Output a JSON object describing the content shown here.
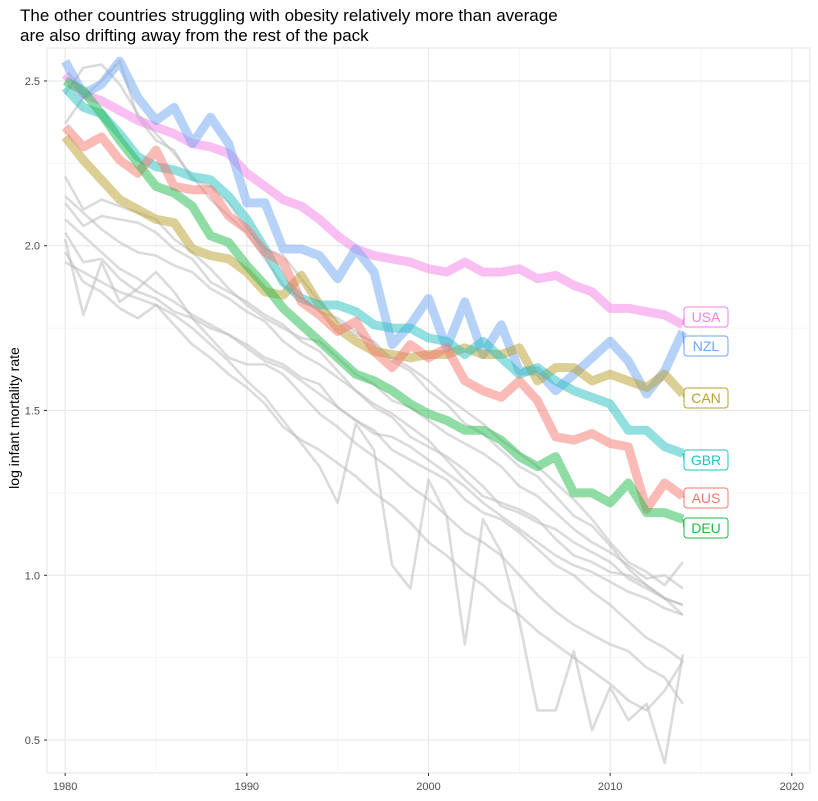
{
  "chart_data": {
    "type": "line",
    "title": "The other countries struggling with obesity relatively more than average\nare also drifting away from the rest of the pack",
    "xlabel": "",
    "ylabel": "log infant mortality rate",
    "xlim": [
      1979,
      2021
    ],
    "ylim": [
      0.4,
      2.6
    ],
    "x_ticks": [
      1980,
      1990,
      2000,
      2010,
      2020
    ],
    "y_ticks": [
      0.5,
      1.0,
      1.5,
      2.0,
      2.5
    ],
    "grid": true,
    "highlighted_series": [
      {
        "name": "USA",
        "color": "#f47fe6",
        "x": [
          1980,
          1981,
          1982,
          1983,
          1984,
          1985,
          1986,
          1987,
          1988,
          1989,
          1990,
          1991,
          1992,
          1993,
          1994,
          1995,
          1996,
          1997,
          1998,
          1999,
          2000,
          2001,
          2002,
          2003,
          2004,
          2005,
          2006,
          2007,
          2008,
          2009,
          2010,
          2011,
          2012,
          2013,
          2014
        ],
        "values": [
          2.52,
          2.46,
          2.44,
          2.41,
          2.38,
          2.36,
          2.34,
          2.31,
          2.3,
          2.28,
          2.22,
          2.18,
          2.14,
          2.12,
          2.08,
          2.03,
          1.99,
          1.97,
          1.96,
          1.95,
          1.93,
          1.92,
          1.95,
          1.92,
          1.92,
          1.93,
          1.9,
          1.91,
          1.88,
          1.86,
          1.81,
          1.81,
          1.8,
          1.79,
          1.76
        ]
      },
      {
        "name": "NZL",
        "color": "#6fa5f4",
        "x": [
          1980,
          1981,
          1982,
          1983,
          1984,
          1985,
          1986,
          1987,
          1988,
          1989,
          1990,
          1991,
          1992,
          1993,
          1994,
          1995,
          1996,
          1997,
          1998,
          1999,
          2000,
          2001,
          2002,
          2003,
          2004,
          2005,
          2006,
          2007,
          2008,
          2009,
          2010,
          2011,
          2012,
          2013,
          2014
        ],
        "values": [
          2.56,
          2.46,
          2.49,
          2.56,
          2.45,
          2.38,
          2.42,
          2.31,
          2.39,
          2.31,
          2.13,
          2.13,
          1.99,
          1.99,
          1.97,
          1.9,
          1.99,
          1.92,
          1.7,
          1.76,
          1.84,
          1.69,
          1.83,
          1.67,
          1.76,
          1.62,
          1.62,
          1.56,
          1.61,
          1.66,
          1.71,
          1.65,
          1.55,
          1.62,
          1.74
        ]
      },
      {
        "name": "CAN",
        "color": "#b99f2c",
        "x": [
          1980,
          1981,
          1982,
          1983,
          1984,
          1985,
          1986,
          1987,
          1988,
          1989,
          1990,
          1991,
          1992,
          1993,
          1994,
          1995,
          1996,
          1997,
          1998,
          1999,
          2000,
          2001,
          2002,
          2003,
          2004,
          2005,
          2006,
          2007,
          2008,
          2009,
          2010,
          2011,
          2012,
          2013,
          2014
        ],
        "values": [
          2.33,
          2.26,
          2.2,
          2.14,
          2.11,
          2.08,
          2.07,
          1.99,
          1.97,
          1.96,
          1.92,
          1.86,
          1.85,
          1.91,
          1.82,
          1.75,
          1.71,
          1.68,
          1.67,
          1.66,
          1.67,
          1.67,
          1.69,
          1.67,
          1.67,
          1.69,
          1.59,
          1.63,
          1.63,
          1.59,
          1.61,
          1.59,
          1.57,
          1.61,
          1.55
        ]
      },
      {
        "name": "GBR",
        "color": "#26c0c0",
        "x": [
          1980,
          1981,
          1982,
          1983,
          1984,
          1985,
          1986,
          1987,
          1988,
          1989,
          1990,
          1991,
          1992,
          1993,
          1994,
          1995,
          1996,
          1997,
          1998,
          1999,
          2000,
          2001,
          2002,
          2003,
          2004,
          2005,
          2006,
          2007,
          2008,
          2009,
          2010,
          2011,
          2012,
          2013,
          2014
        ],
        "values": [
          2.48,
          2.42,
          2.4,
          2.34,
          2.27,
          2.24,
          2.23,
          2.21,
          2.2,
          2.15,
          2.08,
          1.99,
          1.89,
          1.84,
          1.82,
          1.82,
          1.8,
          1.76,
          1.75,
          1.75,
          1.72,
          1.71,
          1.67,
          1.71,
          1.66,
          1.61,
          1.63,
          1.59,
          1.56,
          1.54,
          1.52,
          1.44,
          1.44,
          1.39,
          1.37
        ]
      },
      {
        "name": "AUS",
        "color": "#f5766d",
        "x": [
          1980,
          1981,
          1982,
          1983,
          1984,
          1985,
          1986,
          1987,
          1988,
          1989,
          1990,
          1991,
          1992,
          1993,
          1994,
          1995,
          1996,
          1997,
          1998,
          1999,
          2000,
          2001,
          2002,
          2003,
          2004,
          2005,
          2006,
          2007,
          2008,
          2009,
          2010,
          2011,
          2012,
          2013,
          2014
        ],
        "values": [
          2.36,
          2.3,
          2.33,
          2.26,
          2.22,
          2.29,
          2.18,
          2.17,
          2.17,
          2.09,
          2.05,
          1.98,
          1.95,
          1.83,
          1.79,
          1.74,
          1.77,
          1.68,
          1.63,
          1.7,
          1.66,
          1.69,
          1.59,
          1.56,
          1.54,
          1.59,
          1.53,
          1.42,
          1.41,
          1.43,
          1.4,
          1.39,
          1.2,
          1.28,
          1.24
        ]
      },
      {
        "name": "DEU",
        "color": "#22b94c",
        "x": [
          1980,
          1981,
          1982,
          1983,
          1984,
          1985,
          1986,
          1987,
          1988,
          1989,
          1990,
          1991,
          1992,
          1993,
          1994,
          1995,
          1996,
          1997,
          1998,
          1999,
          2000,
          2001,
          2002,
          2003,
          2004,
          2005,
          2006,
          2007,
          2008,
          2009,
          2010,
          2011,
          2012,
          2013,
          2014
        ],
        "values": [
          2.5,
          2.47,
          2.4,
          2.32,
          2.25,
          2.18,
          2.16,
          2.12,
          2.03,
          2.01,
          1.94,
          1.88,
          1.81,
          1.76,
          1.71,
          1.66,
          1.61,
          1.59,
          1.56,
          1.52,
          1.49,
          1.47,
          1.44,
          1.44,
          1.41,
          1.36,
          1.33,
          1.36,
          1.25,
          1.25,
          1.22,
          1.28,
          1.19,
          1.19,
          1.17
        ]
      }
    ],
    "background_series": [
      {
        "name": "",
        "values": [
          2.46,
          2.54,
          2.55,
          2.49,
          2.4,
          2.34,
          2.28,
          2.21,
          2.14,
          2.09,
          2.04,
          1.96,
          1.88,
          1.84,
          1.8,
          1.78,
          1.74,
          1.7,
          1.66,
          1.63,
          1.59,
          1.54,
          1.5,
          1.46,
          1.41,
          1.37,
          1.33,
          1.28,
          1.23,
          1.17,
          1.1,
          1.04,
          1.01,
          0.97,
          1.04
        ]
      },
      {
        "name": "",
        "values": [
          2.37,
          2.45,
          2.5,
          2.56,
          2.39,
          2.32,
          2.29,
          2.2,
          2.18,
          2.13,
          2.05,
          1.99,
          1.97,
          1.9,
          1.83,
          1.77,
          1.73,
          1.71,
          1.65,
          1.62,
          1.56,
          1.52,
          1.46,
          1.43,
          1.38,
          1.33,
          1.3,
          1.24,
          1.18,
          1.15,
          1.09,
          1.02,
          0.97,
          0.93,
          0.88
        ]
      },
      {
        "name": "",
        "values": [
          2.21,
          2.11,
          2.14,
          2.12,
          2.1,
          2.08,
          2.02,
          1.98,
          1.93,
          1.87,
          1.82,
          1.78,
          1.75,
          1.72,
          1.71,
          1.66,
          1.61,
          1.58,
          1.53,
          1.51,
          1.47,
          1.43,
          1.4,
          1.37,
          1.33,
          1.27,
          1.24,
          1.19,
          1.14,
          1.1,
          1.07,
          1.03,
          0.99,
          1.0,
          0.96
        ]
      },
      {
        "name": "",
        "values": [
          2.13,
          2.06,
          2.09,
          2.08,
          2.07,
          2.04,
          1.99,
          1.96,
          1.89,
          1.86,
          1.83,
          1.79,
          1.76,
          1.71,
          1.68,
          1.62,
          1.56,
          1.52,
          1.49,
          1.45,
          1.41,
          1.35,
          1.29,
          1.24,
          1.22,
          1.2,
          1.17,
          1.11,
          1.06,
          1.04,
          1.01,
          1.0,
          0.97,
          0.93,
          0.91
        ]
      },
      {
        "name": "",
        "values": [
          2.15,
          2.1,
          2.05,
          2.01,
          1.98,
          1.97,
          1.94,
          1.92,
          1.87,
          1.84,
          1.8,
          1.77,
          1.71,
          1.67,
          1.64,
          1.6,
          1.56,
          1.51,
          1.48,
          1.42,
          1.39,
          1.36,
          1.32,
          1.27,
          1.21,
          1.19,
          1.16,
          1.14,
          1.1,
          1.07,
          1.04,
          0.99,
          0.96,
          0.93,
          0.91
        ]
      },
      {
        "name": "",
        "values": [
          2.08,
          2.03,
          1.98,
          1.93,
          1.9,
          1.86,
          1.83,
          1.79,
          1.76,
          1.73,
          1.69,
          1.65,
          1.63,
          1.59,
          1.55,
          1.51,
          1.47,
          1.43,
          1.42,
          1.39,
          1.35,
          1.31,
          1.27,
          1.22,
          1.18,
          1.14,
          1.1,
          1.06,
          1.03,
          1.01,
          0.98,
          0.95,
          0.93,
          0.9,
          0.88
        ]
      },
      {
        "name": "",
        "values": [
          2.04,
          1.95,
          1.96,
          1.9,
          1.86,
          1.84,
          1.8,
          1.78,
          1.75,
          1.73,
          1.7,
          1.66,
          1.64,
          1.6,
          1.58,
          1.51,
          1.47,
          1.44,
          1.38,
          1.35,
          1.32,
          1.29,
          1.23,
          1.19,
          1.17,
          1.13,
          1.08,
          1.03,
          1.0,
          0.95,
          0.91,
          0.86,
          0.81,
          0.78,
          0.74
        ]
      },
      {
        "name": "",
        "values": [
          2.02,
          1.79,
          1.95,
          1.83,
          1.87,
          1.92,
          1.86,
          1.78,
          1.72,
          1.66,
          1.64,
          1.64,
          1.61,
          1.55,
          1.49,
          1.45,
          1.4,
          1.36,
          1.32,
          1.27,
          1.23,
          1.18,
          1.13,
          1.1,
          1.06,
          1.0,
          0.94,
          0.89,
          0.85,
          0.82,
          0.79,
          0.77,
          0.72,
          0.69,
          0.61
        ]
      },
      {
        "name": "",
        "values": [
          1.98,
          1.89,
          1.86,
          1.81,
          1.78,
          1.82,
          1.76,
          1.7,
          1.66,
          1.61,
          1.57,
          1.52,
          1.45,
          1.41,
          1.38,
          1.34,
          1.3,
          1.25,
          1.21,
          1.16,
          1.1,
          1.06,
          1.01,
          0.97,
          0.92,
          0.88,
          0.83,
          0.79,
          0.75,
          0.71,
          0.67,
          0.62,
          0.59,
          0.65,
          0.74
        ]
      },
      {
        "name": "",
        "values": [
          1.95,
          1.92,
          1.89,
          1.86,
          1.84,
          1.82,
          1.79,
          1.75,
          1.7,
          1.65,
          1.59,
          1.54,
          1.47,
          1.4,
          1.33,
          1.22,
          1.46,
          1.38,
          1.03,
          0.96,
          1.29,
          1.18,
          0.79,
          1.17,
          1.07,
          0.86,
          0.59,
          0.59,
          0.77,
          0.53,
          0.66,
          0.56,
          0.61,
          0.43,
          0.76
        ]
      }
    ],
    "labels": [
      "USA",
      "NZL",
      "CAN",
      "GBR",
      "AUS",
      "DEU"
    ]
  }
}
